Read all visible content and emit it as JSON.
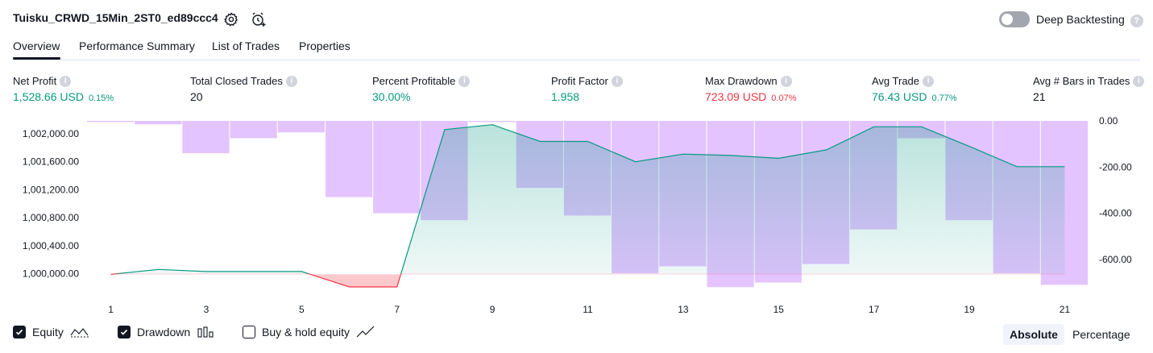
{
  "header": {
    "title": "Tuisku_CRWD_15Min_2ST0_ed89ccc4",
    "deep_backtesting_label": "Deep Backtesting",
    "deep_backtesting_enabled": false,
    "help_glyph": "?"
  },
  "tabs": [
    {
      "label": "Overview",
      "active": true
    },
    {
      "label": "Performance Summary",
      "active": false
    },
    {
      "label": "List of Trades",
      "active": false
    },
    {
      "label": "Properties",
      "active": false
    }
  ],
  "metrics": [
    {
      "label": "Net Profit",
      "value": "1,528.66 USD",
      "pct": "0.15%",
      "tone": "green"
    },
    {
      "label": "Total Closed Trades",
      "value": "20",
      "pct": "",
      "tone": "dark"
    },
    {
      "label": "Percent Profitable",
      "value": "30.00%",
      "pct": "",
      "tone": "green"
    },
    {
      "label": "Profit Factor",
      "value": "1.958",
      "pct": "",
      "tone": "green"
    },
    {
      "label": "Max Drawdown",
      "value": "723.09 USD",
      "pct": "0.07%",
      "tone": "red"
    },
    {
      "label": "Avg Trade",
      "value": "76.43 USD",
      "pct": "0.77%",
      "tone": "green"
    },
    {
      "label": "Avg # Bars in Trades",
      "value": "21",
      "pct": "",
      "tone": "dark"
    }
  ],
  "info_glyph": "i",
  "chart_data": {
    "type": "line",
    "x": [
      1,
      2,
      3,
      4,
      5,
      6,
      7,
      8,
      9,
      10,
      11,
      12,
      13,
      14,
      15,
      16,
      17,
      18,
      19,
      20,
      21
    ],
    "x_tick_labels": [
      "1",
      "3",
      "5",
      "7",
      "9",
      "11",
      "13",
      "15",
      "17",
      "19",
      "21"
    ],
    "x_ticks": [
      1,
      3,
      5,
      7,
      9,
      11,
      13,
      15,
      17,
      19,
      21
    ],
    "series": [
      {
        "name": "Equity",
        "axis": "left",
        "color": "#089981",
        "values": [
          999990,
          1000060,
          1000030,
          1000030,
          1000030,
          999810,
          999810,
          1002060,
          1002130,
          1001890,
          1001890,
          1001600,
          1001710,
          1001690,
          1001650,
          1001770,
          1002100,
          1002100,
          1001820,
          1001530,
          1001530
        ]
      },
      {
        "name": "Drawdown",
        "axis": "right",
        "color": "#c77dff",
        "values": [
          -2,
          -15,
          -140,
          -75,
          -50,
          -330,
          -400,
          -430,
          0,
          -290,
          -410,
          -660,
          -630,
          -720,
          -700,
          -620,
          -470,
          -75,
          -430,
          -660,
          -710
        ]
      }
    ],
    "left_axis": {
      "ticks": [
        "1,000,000.00",
        "1,000,400.00",
        "1,000,800.00",
        "1,001,200.00",
        "1,001,600.00",
        "1,002,000.00"
      ],
      "tick_values": [
        1000000,
        1000400,
        1000800,
        1001200,
        1001600,
        1002000
      ]
    },
    "right_axis": {
      "ticks": [
        "0.00",
        "-200.00",
        "-400.00",
        "-600.00"
      ],
      "tick_values": [
        0,
        -200,
        -400,
        -600
      ]
    }
  },
  "legend": {
    "equity": {
      "label": "Equity",
      "checked": true
    },
    "drawdown": {
      "label": "Drawdown",
      "checked": true
    },
    "buy_hold": {
      "label": "Buy & hold equity",
      "checked": false
    }
  },
  "mode": {
    "absolute": "Absolute",
    "percentage": "Percentage",
    "active": "absolute"
  }
}
